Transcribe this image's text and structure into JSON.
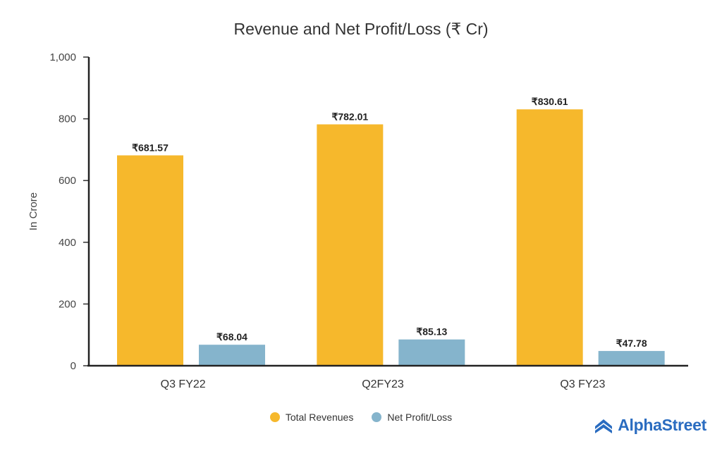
{
  "chart_data": {
    "type": "bar",
    "title": "Revenue and Net Profit/Loss (₹ Cr)",
    "xlabel": "",
    "ylabel": "In Crore",
    "categories": [
      "Q3 FY22",
      "Q2FY23",
      "Q3 FY23"
    ],
    "series": [
      {
        "name": "Total Revenues",
        "values": [
          681.57,
          782.01,
          830.61
        ],
        "labels": [
          "₹681.57",
          "₹782.01",
          "₹830.61"
        ],
        "color": "#f6b82c"
      },
      {
        "name": "Net Profit/Loss",
        "values": [
          68.04,
          85.13,
          47.78
        ],
        "labels": [
          "₹68.04",
          "₹85.13",
          "₹47.78"
        ],
        "color": "#85b4cc"
      }
    ],
    "ylim": [
      0,
      1000
    ],
    "yticks": [
      0,
      200,
      400,
      600,
      800,
      1000
    ],
    "ytick_labels": [
      "0",
      "200",
      "400",
      "600",
      "800",
      "1,000"
    ],
    "grid": false,
    "legend_position": "bottom-center"
  },
  "branding": {
    "logo_text": "AlphaStreet",
    "logo_icon": "alphastreet-logo-icon",
    "logo_color": "#2a6cc0"
  }
}
